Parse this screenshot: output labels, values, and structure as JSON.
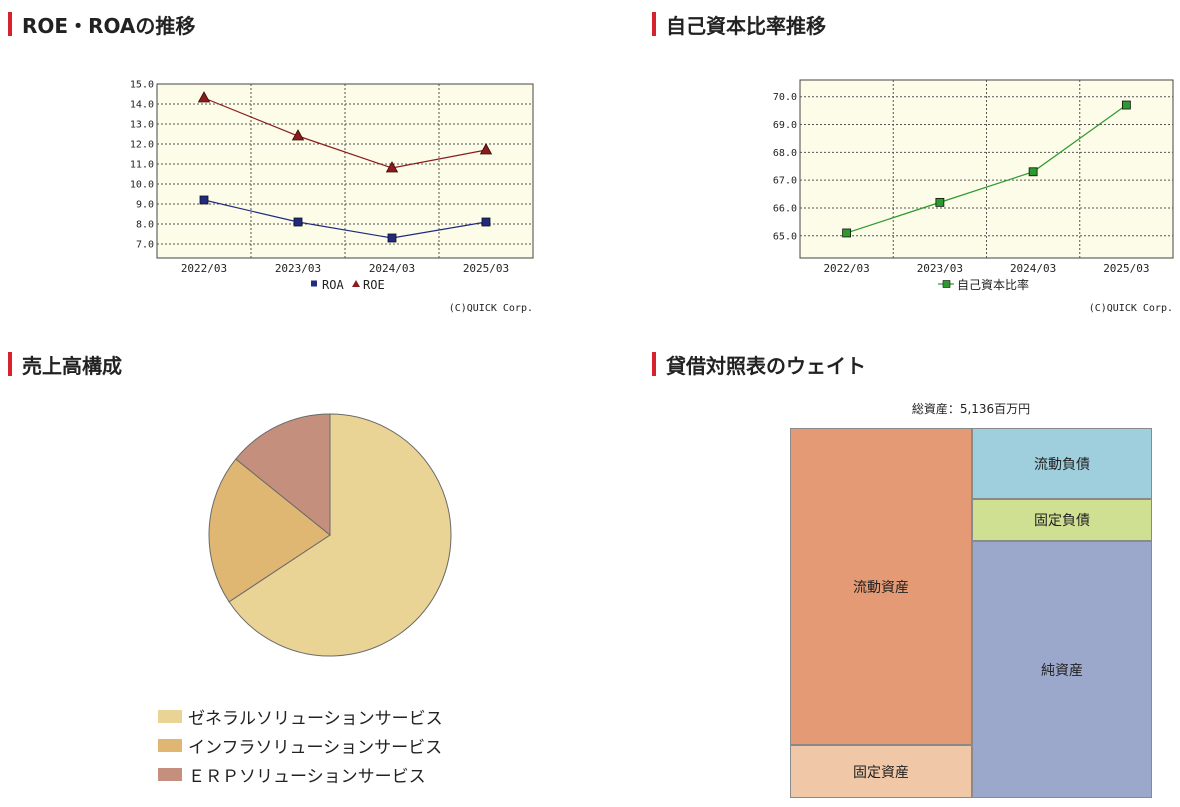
{
  "sections": {
    "roe_roa": {
      "heading": "ROE・ROAの推移",
      "copyright": "(C)QUICK Corp."
    },
    "equity": {
      "heading": "自己資本比率推移",
      "copyright": "(C)QUICK Corp."
    },
    "sales": {
      "heading": "売上高構成"
    },
    "balance": {
      "heading": "貸借対照表のウェイト",
      "total_label": "総資産：5,136百万円"
    }
  },
  "chart_data": [
    {
      "type": "line",
      "title": "ROE・ROAの推移",
      "categories": [
        "2022/03",
        "2023/03",
        "2024/03",
        "2025/03"
      ],
      "yticks": [
        "15.0",
        "14.0",
        "13.0",
        "12.0",
        "11.0",
        "10.0",
        "9.0",
        "8.0",
        "7.0"
      ],
      "ylim": [
        6.3,
        15.0
      ],
      "grid": true,
      "legend_placement": "bottom",
      "series": [
        {
          "name": "ROA",
          "values": [
            9.2,
            8.1,
            7.3,
            8.1
          ],
          "color": "#1f2a80",
          "marker": "square"
        },
        {
          "name": "ROE",
          "values": [
            14.3,
            12.4,
            10.8,
            11.7
          ],
          "color": "#8b1c1c",
          "marker": "triangle"
        }
      ]
    },
    {
      "type": "line",
      "title": "自己資本比率推移",
      "categories": [
        "2022/03",
        "2023/03",
        "2024/03",
        "2025/03"
      ],
      "yticks": [
        "70.0",
        "69.0",
        "68.0",
        "67.0",
        "66.0",
        "65.0"
      ],
      "ylim": [
        64.2,
        70.6
      ],
      "grid": true,
      "legend_placement": "bottom",
      "series": [
        {
          "name": "自己資本比率",
          "values": [
            65.1,
            66.2,
            67.3,
            69.7
          ],
          "color": "#2c9a2c",
          "marker": "square"
        }
      ]
    },
    {
      "type": "pie",
      "title": "売上高構成",
      "legend_placement": "bottom",
      "slices": [
        {
          "name": "ゼネラルソリューションサービス",
          "value": 65.7,
          "color": "#e9d495"
        },
        {
          "name": "インフラソリューションサービス",
          "value": 20.1,
          "color": "#e0b772"
        },
        {
          "name": "ＥＲＰソリューションサービス",
          "value": 14.2,
          "color": "#c4907d"
        }
      ]
    },
    {
      "type": "table",
      "title": "貸借対照表のウェイト",
      "total": "総資産：5,136百万円",
      "assets": [
        {
          "name": "流動資産",
          "value": 85.8,
          "color": "#e39a75"
        },
        {
          "name": "固定資産",
          "value": 14.2,
          "color": "#f0c8a7"
        }
      ],
      "liabilities_equity": [
        {
          "name": "流動負債",
          "value": 19.1,
          "color": "#9fcfdd"
        },
        {
          "name": "固定負債",
          "value": 11.4,
          "color": "#cfe092"
        },
        {
          "name": "純資産",
          "value": 69.5,
          "color": "#9ca8cb"
        }
      ]
    }
  ]
}
